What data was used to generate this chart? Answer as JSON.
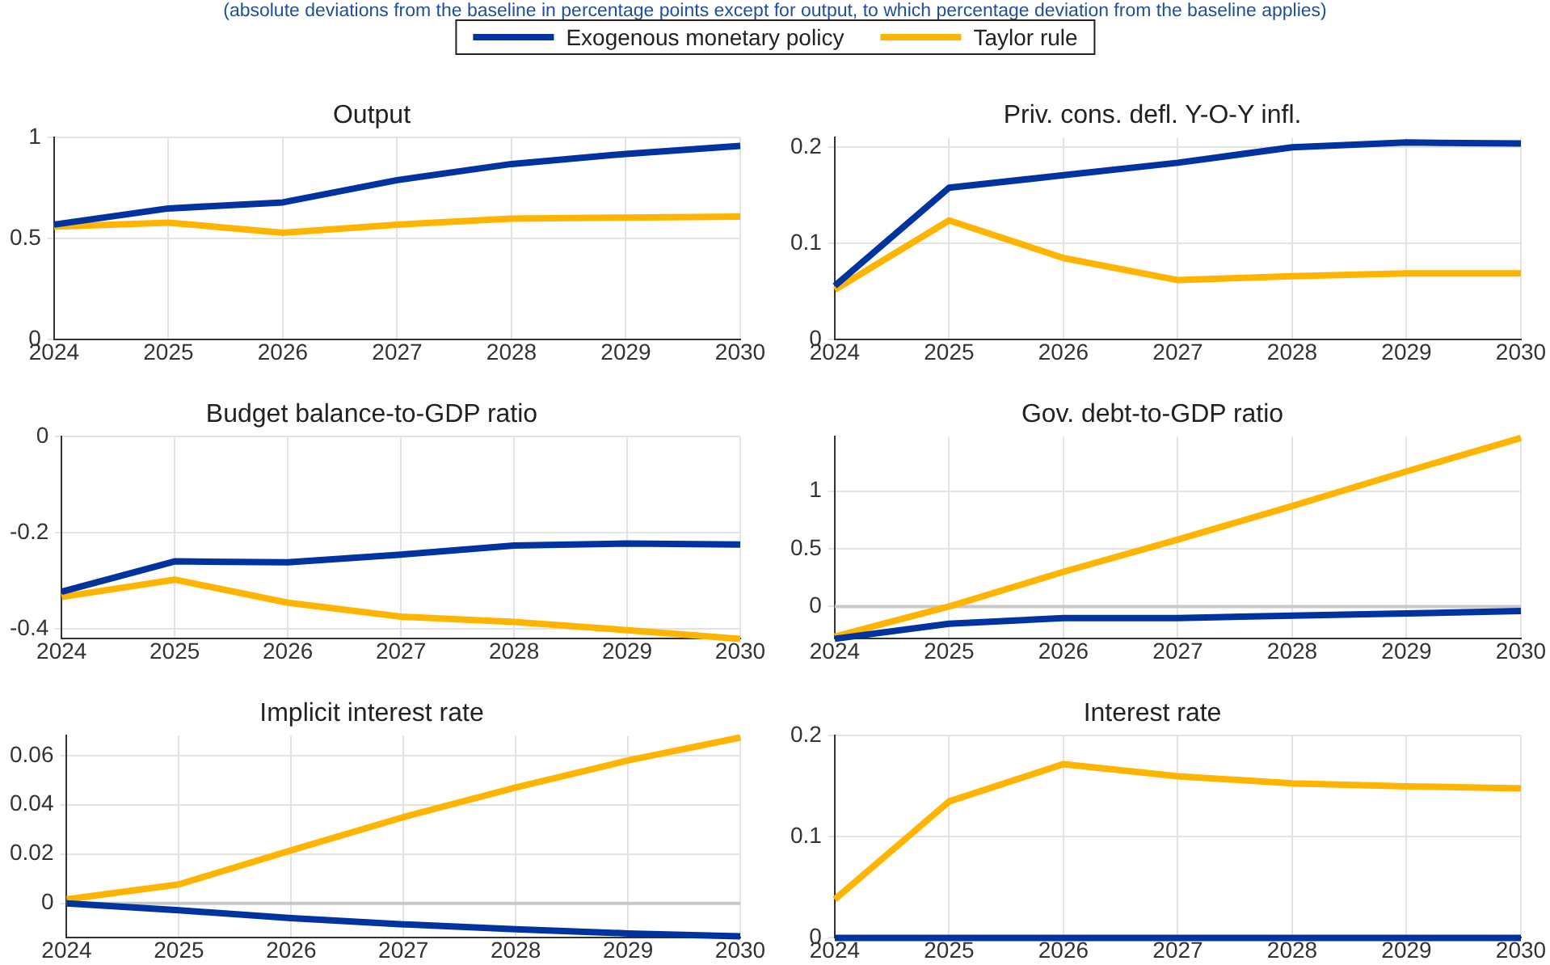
{
  "chart_data": [
    {
      "type": "line",
      "title": "Output",
      "subtitle": "(absolute deviations from the baseline in percentage points except for output, to which percentage deviation from the baseline applies)",
      "legend": "top",
      "grid": true,
      "x": [
        2024,
        2025,
        2026,
        2027,
        2028,
        2029,
        2030
      ],
      "xlim": [
        2024,
        2030
      ],
      "xticks": [
        2024,
        2025,
        2026,
        2027,
        2028,
        2029,
        2030
      ],
      "ylim": [
        0,
        1
      ],
      "yticks": [
        0,
        0.5,
        1
      ],
      "series": [
        {
          "name": "Exogenous monetary policy",
          "color": "#0033a0",
          "values": [
            0.57,
            0.65,
            0.68,
            0.79,
            0.87,
            0.92,
            0.96
          ]
        },
        {
          "name": "Taylor rule",
          "color": "#ffb400",
          "values": [
            0.56,
            0.58,
            0.53,
            0.57,
            0.6,
            0.605,
            0.61
          ]
        }
      ]
    },
    {
      "type": "line",
      "title": "Priv. cons. defl. Y-O-Y infl.",
      "grid": true,
      "x": [
        2024,
        2025,
        2026,
        2027,
        2028,
        2029,
        2030
      ],
      "xlim": [
        2024,
        2030
      ],
      "xticks": [
        2024,
        2025,
        2026,
        2027,
        2028,
        2029,
        2030
      ],
      "ylim": [
        0,
        0.21
      ],
      "yticks": [
        0,
        0.1,
        0.2
      ],
      "series": [
        {
          "color": "#0033a0",
          "values": [
            0.056,
            0.158,
            0.171,
            0.184,
            0.2,
            0.205,
            0.204
          ]
        },
        {
          "color": "#ffb400",
          "values": [
            0.052,
            0.124,
            0.085,
            0.062,
            0.066,
            0.069,
            0.069
          ]
        }
      ]
    },
    {
      "type": "line",
      "title": "Budget balance-to-GDP ratio",
      "grid": true,
      "x": [
        2024,
        2025,
        2026,
        2027,
        2028,
        2029,
        2030
      ],
      "xlim": [
        2024,
        2030
      ],
      "xticks": [
        2024,
        2025,
        2026,
        2027,
        2028,
        2029,
        2030
      ],
      "ylim": [
        -0.42,
        0
      ],
      "yticks": [
        -0.4,
        -0.2,
        0
      ],
      "series": [
        {
          "color": "#0033a0",
          "values": [
            -0.322,
            -0.259,
            -0.261,
            -0.245,
            -0.226,
            -0.222,
            -0.224
          ]
        },
        {
          "color": "#ffb400",
          "values": [
            -0.333,
            -0.297,
            -0.345,
            -0.374,
            -0.385,
            -0.402,
            -0.42
          ]
        }
      ]
    },
    {
      "type": "line",
      "title": "Gov. debt-to-GDP ratio",
      "grid": true,
      "x": [
        2024,
        2025,
        2026,
        2027,
        2028,
        2029,
        2030
      ],
      "xlim": [
        2024,
        2030
      ],
      "xticks": [
        2024,
        2025,
        2026,
        2027,
        2028,
        2029,
        2030
      ],
      "ylim": [
        -0.28,
        1.47
      ],
      "yticks": [
        0,
        0.5,
        1
      ],
      "ref_lines": [
        {
          "axis": "y",
          "value": 0,
          "color": "#c8c8c8"
        }
      ],
      "series": [
        {
          "color": "#0033a0",
          "values": [
            -0.28,
            -0.15,
            -0.1,
            -0.1,
            -0.08,
            -0.06,
            -0.04
          ]
        },
        {
          "color": "#ffb400",
          "values": [
            -0.26,
            0.0,
            0.3,
            0.58,
            0.87,
            1.17,
            1.46
          ]
        }
      ]
    },
    {
      "type": "line",
      "title": "Implicit interest rate",
      "grid": true,
      "x": [
        2024,
        2025,
        2026,
        2027,
        2028,
        2029,
        2030
      ],
      "xlim": [
        2024,
        2030
      ],
      "xticks": [
        2024,
        2025,
        2026,
        2027,
        2028,
        2029,
        2030
      ],
      "ylim": [
        -0.014,
        0.068
      ],
      "yticks": [
        0,
        0.02,
        0.04,
        0.06
      ],
      "ref_lines": [
        {
          "axis": "y",
          "value": 0,
          "color": "#c8c8c8"
        }
      ],
      "series": [
        {
          "color": "#0033a0",
          "values": [
            0,
            -0.0028,
            -0.006,
            -0.0085,
            -0.0105,
            -0.0122,
            -0.0134
          ]
        },
        {
          "color": "#ffb400",
          "values": [
            0.0016,
            0.0077,
            0.0215,
            0.035,
            0.047,
            0.058,
            0.0673
          ]
        }
      ]
    },
    {
      "type": "line",
      "title": "Interest rate",
      "grid": true,
      "x": [
        2024,
        2025,
        2026,
        2027,
        2028,
        2029,
        2030
      ],
      "xlim": [
        2024,
        2030
      ],
      "xticks": [
        2024,
        2025,
        2026,
        2027,
        2028,
        2029,
        2030
      ],
      "ylim": [
        0,
        0.2
      ],
      "yticks": [
        0,
        0.1,
        0.2
      ],
      "series": [
        {
          "color": "#0033a0",
          "values": [
            0,
            0,
            0,
            0,
            0,
            0,
            0
          ]
        },
        {
          "color": "#ffb400",
          "values": [
            0.038,
            0.135,
            0.172,
            0.16,
            0.153,
            0.15,
            0.148
          ]
        }
      ]
    }
  ]
}
